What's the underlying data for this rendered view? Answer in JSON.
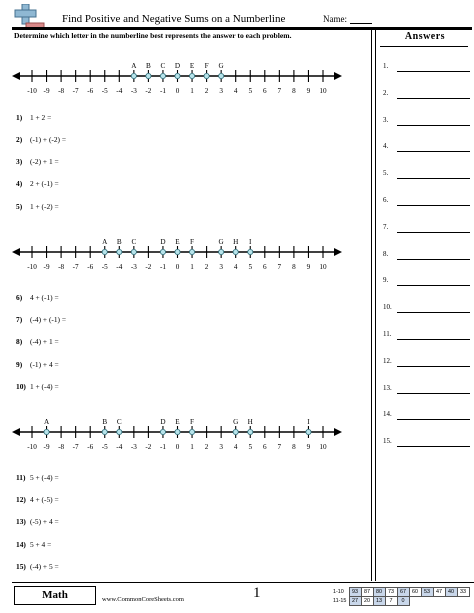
{
  "header": {
    "title": "Find Positive and Negative Sums on a Numberline",
    "name_label": "Name:"
  },
  "instructions": "Determine which letter in the numberline best represents the answer to each problem.",
  "answers": {
    "title": "Answers",
    "numbers": [
      "1.",
      "2.",
      "3.",
      "4.",
      "5.",
      "6.",
      "7.",
      "8.",
      "9.",
      "10.",
      "11.",
      "12.",
      "13.",
      "14.",
      "15."
    ]
  },
  "tick_labels": [
    "-10",
    "-9",
    "-8",
    "-7",
    "-6",
    "-5",
    "-4",
    "-3",
    "-2",
    "-1",
    "0",
    "1",
    "2",
    "3",
    "4",
    "5",
    "6",
    "7",
    "8",
    "9",
    "10"
  ],
  "numberlines": [
    {
      "points": [
        {
          "letter": "A",
          "value": -3
        },
        {
          "letter": "B",
          "value": -2
        },
        {
          "letter": "C",
          "value": -1
        },
        {
          "letter": "D",
          "value": 0
        },
        {
          "letter": "E",
          "value": 1
        },
        {
          "letter": "F",
          "value": 2
        },
        {
          "letter": "G",
          "value": 3
        }
      ]
    },
    {
      "points": [
        {
          "letter": "A",
          "value": -5
        },
        {
          "letter": "B",
          "value": -4
        },
        {
          "letter": "C",
          "value": -3
        },
        {
          "letter": "D",
          "value": -1
        },
        {
          "letter": "E",
          "value": 0
        },
        {
          "letter": "F",
          "value": 1
        },
        {
          "letter": "G",
          "value": 3
        },
        {
          "letter": "H",
          "value": 4
        },
        {
          "letter": "I",
          "value": 5
        }
      ]
    },
    {
      "points": [
        {
          "letter": "A",
          "value": -9
        },
        {
          "letter": "B",
          "value": -5
        },
        {
          "letter": "C",
          "value": -4
        },
        {
          "letter": "D",
          "value": -1
        },
        {
          "letter": "E",
          "value": 0
        },
        {
          "letter": "F",
          "value": 1
        },
        {
          "letter": "G",
          "value": 4
        },
        {
          "letter": "H",
          "value": 5
        },
        {
          "letter": "I",
          "value": 9
        }
      ]
    }
  ],
  "problems": [
    {
      "num": "1)",
      "text": "1 + 2 ="
    },
    {
      "num": "2)",
      "text": "(-1) + (-2) ="
    },
    {
      "num": "3)",
      "text": "(-2) + 1 ="
    },
    {
      "num": "4)",
      "text": "2 + (-1) ="
    },
    {
      "num": "5)",
      "text": "1 + (-2) ="
    },
    {
      "num": "6)",
      "text": "4 + (-1) ="
    },
    {
      "num": "7)",
      "text": "(-4) + (-1) ="
    },
    {
      "num": "8)",
      "text": "(-4) + 1 ="
    },
    {
      "num": "9)",
      "text": "(-1) + 4 ="
    },
    {
      "num": "10)",
      "text": "1 + (-4) ="
    },
    {
      "num": "11)",
      "text": "5 + (-4) ="
    },
    {
      "num": "12)",
      "text": "4 + (-5) ="
    },
    {
      "num": "13)",
      "text": "(-5) + 4 ="
    },
    {
      "num": "14)",
      "text": "5 + 4 ="
    },
    {
      "num": "15)",
      "text": "(-4) + 5 ="
    }
  ],
  "footer": {
    "subject": "Math",
    "website": "www.CommonCoreSheets.com",
    "page_number": "1",
    "score_rows": [
      {
        "label": "1-10",
        "values": [
          "93",
          "87",
          "80",
          "73",
          "67",
          "60",
          "53",
          "47",
          "40",
          "33"
        ]
      },
      {
        "label": "11-15",
        "values": [
          "27",
          "20",
          "13",
          "7",
          "0"
        ]
      }
    ]
  },
  "colors": {
    "point_fill": "#b7e3ea",
    "logo_blue": "#8fb8d3",
    "score_highlight": "#c9d7ea"
  }
}
